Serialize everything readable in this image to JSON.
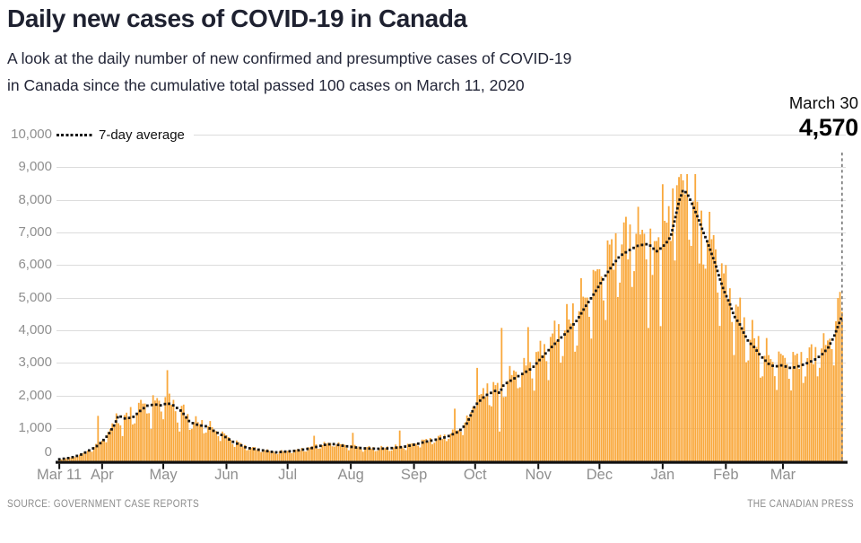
{
  "title": "Daily new cases of COVID-19 in Canada",
  "subtitle_line1": "A look at the daily number of new confirmed and presumptive cases of COVID-19",
  "subtitle_line2": "in Canada since the cumulative total passed 100 cases on March 11, 2020",
  "annotation": {
    "date_label": "March 30",
    "value_label": "4,570"
  },
  "legend": {
    "label": "7-day average"
  },
  "footer": {
    "source": "SOURCE: GOVERNMENT CASE REPORTS",
    "credit": "THE CANADIAN PRESS"
  },
  "colors": {
    "bar": "#F9A83C",
    "avg_dot": "#151515",
    "gridline": "#dcdcdc",
    "axis": "#111111",
    "tick_label": "#8f8f8f",
    "annotation_line": "#777777",
    "title_text": "#1e2130",
    "footer_text": "#8b8b8b"
  },
  "chart_data": {
    "type": "bar",
    "series_label": "Daily new cases",
    "overlay_series_label": "7-day average",
    "start_date": "2020-03-11",
    "end_date": "2021-03-30",
    "num_days": 385,
    "ylim": [
      0,
      10000
    ],
    "grid": true,
    "legend_position": "top-left",
    "yticks": [
      {
        "value": 0,
        "label": "0"
      },
      {
        "value": 1000,
        "label": "1,000"
      },
      {
        "value": 2000,
        "label": "2,000"
      },
      {
        "value": 3000,
        "label": "3,000"
      },
      {
        "value": 4000,
        "label": "4,000"
      },
      {
        "value": 5000,
        "label": "5,000"
      },
      {
        "value": 6000,
        "label": "6,000"
      },
      {
        "value": 7000,
        "label": "7,000"
      },
      {
        "value": 8000,
        "label": "8,000"
      },
      {
        "value": 9000,
        "label": "9,000"
      },
      {
        "value": 10000,
        "label": "10,000"
      }
    ],
    "xticks": [
      {
        "day": 0,
        "label": "Mar 11"
      },
      {
        "day": 21,
        "label": "Apr"
      },
      {
        "day": 51,
        "label": "May"
      },
      {
        "day": 82,
        "label": "Jun"
      },
      {
        "day": 112,
        "label": "Jul"
      },
      {
        "day": 143,
        "label": "Aug"
      },
      {
        "day": 174,
        "label": "Sep"
      },
      {
        "day": 204,
        "label": "Oct"
      },
      {
        "day": 235,
        "label": "Nov"
      },
      {
        "day": 265,
        "label": "Dec"
      },
      {
        "day": 296,
        "label": "Jan"
      },
      {
        "day": 327,
        "label": "Feb"
      },
      {
        "day": 355,
        "label": "Mar"
      }
    ],
    "avg_7day_controls": [
      [
        0,
        50
      ],
      [
        4,
        80
      ],
      [
        7,
        120
      ],
      [
        11,
        200
      ],
      [
        14,
        300
      ],
      [
        18,
        430
      ],
      [
        21,
        590
      ],
      [
        24,
        800
      ],
      [
        27,
        1100
      ],
      [
        29,
        1390
      ],
      [
        32,
        1300
      ],
      [
        36,
        1330
      ],
      [
        40,
        1550
      ],
      [
        43,
        1690
      ],
      [
        47,
        1730
      ],
      [
        50,
        1700
      ],
      [
        53,
        1770
      ],
      [
        56,
        1700
      ],
      [
        60,
        1520
      ],
      [
        64,
        1190
      ],
      [
        68,
        1100
      ],
      [
        72,
        1060
      ],
      [
        76,
        910
      ],
      [
        81,
        750
      ],
      [
        85,
        590
      ],
      [
        92,
        400
      ],
      [
        99,
        330
      ],
      [
        106,
        260
      ],
      [
        112,
        290
      ],
      [
        116,
        310
      ],
      [
        123,
        380
      ],
      [
        130,
        490
      ],
      [
        134,
        520
      ],
      [
        139,
        465
      ],
      [
        143,
        430
      ],
      [
        149,
        385
      ],
      [
        156,
        370
      ],
      [
        162,
        385
      ],
      [
        169,
        430
      ],
      [
        174,
        495
      ],
      [
        180,
        590
      ],
      [
        187,
        680
      ],
      [
        191,
        760
      ],
      [
        196,
        900
      ],
      [
        200,
        1150
      ],
      [
        204,
        1700
      ],
      [
        209,
        2000
      ],
      [
        214,
        2150
      ],
      [
        216,
        2080
      ],
      [
        218,
        2330
      ],
      [
        223,
        2520
      ],
      [
        227,
        2660
      ],
      [
        232,
        2840
      ],
      [
        236,
        3120
      ],
      [
        240,
        3390
      ],
      [
        245,
        3710
      ],
      [
        249,
        3940
      ],
      [
        254,
        4310
      ],
      [
        258,
        4720
      ],
      [
        262,
        5090
      ],
      [
        267,
        5590
      ],
      [
        271,
        5960
      ],
      [
        275,
        6280
      ],
      [
        280,
        6470
      ],
      [
        284,
        6600
      ],
      [
        289,
        6650
      ],
      [
        293,
        6420
      ],
      [
        296,
        6560
      ],
      [
        298,
        6700
      ],
      [
        300,
        6880
      ],
      [
        302,
        7400
      ],
      [
        304,
        7950
      ],
      [
        306,
        8300
      ],
      [
        308,
        8200
      ],
      [
        310,
        7940
      ],
      [
        312,
        7650
      ],
      [
        314,
        7340
      ],
      [
        316,
        7000
      ],
      [
        318,
        6700
      ],
      [
        320,
        6350
      ],
      [
        322,
        6005
      ],
      [
        324,
        5590
      ],
      [
        326,
        5225
      ],
      [
        329,
        4810
      ],
      [
        331,
        4445
      ],
      [
        334,
        4170
      ],
      [
        336,
        3895
      ],
      [
        338,
        3665
      ],
      [
        341,
        3480
      ],
      [
        343,
        3300
      ],
      [
        345,
        3160
      ],
      [
        348,
        2975
      ],
      [
        351,
        2885
      ],
      [
        354,
        2930
      ],
      [
        357,
        2880
      ],
      [
        359,
        2840
      ],
      [
        362,
        2885
      ],
      [
        365,
        2950
      ],
      [
        368,
        3025
      ],
      [
        371,
        3115
      ],
      [
        374,
        3250
      ],
      [
        377,
        3450
      ],
      [
        380,
        3800
      ],
      [
        382,
        4125
      ],
      [
        384,
        4445
      ]
    ],
    "bar_overrides": [
      [
        19,
        1380
      ],
      [
        31,
        760
      ],
      [
        35,
        1650
      ],
      [
        40,
        1870
      ],
      [
        45,
        980
      ],
      [
        53,
        2780
      ],
      [
        59,
        900
      ],
      [
        125,
        770
      ],
      [
        144,
        860
      ],
      [
        167,
        930
      ],
      [
        194,
        1600
      ],
      [
        205,
        2850
      ],
      [
        216,
        900
      ],
      [
        217,
        4075
      ],
      [
        230,
        4100
      ],
      [
        289,
        4075
      ],
      [
        291,
        5700
      ],
      [
        295,
        4130
      ],
      [
        296,
        8480
      ],
      [
        303,
        8450
      ],
      [
        304,
        8700
      ],
      [
        305,
        8790
      ],
      [
        306,
        8600
      ],
      [
        314,
        6050
      ],
      [
        383,
        5180
      ],
      [
        384,
        4570
      ]
    ],
    "weekly_pattern": [
      0.1,
      -0.14,
      -0.2,
      0.08,
      0.15,
      0.11,
      0.03
    ],
    "jitter_pattern": [
      0.04,
      -0.05,
      0.07,
      -0.03,
      0.0,
      0.06,
      -0.07,
      0.02,
      -0.04,
      0.09,
      -0.02,
      0.03,
      -0.06
    ],
    "max_bar_value": 8790,
    "final_annotation": {
      "day": 384,
      "value": 4570,
      "date_label": "March 30",
      "value_label": "4,570"
    }
  }
}
